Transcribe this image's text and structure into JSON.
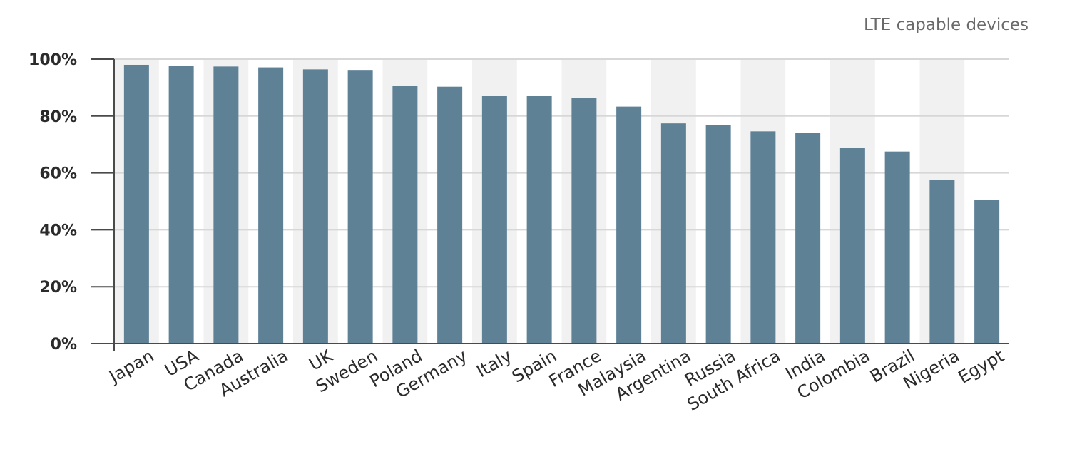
{
  "chart_data": {
    "type": "bar",
    "legend": "LTE capable devices",
    "categories": [
      "Japan",
      "USA",
      "Canada",
      "Australia",
      "UK",
      "Sweden",
      "Poland",
      "Germany",
      "Italy",
      "Spain",
      "France",
      "Malaysia",
      "Argentina",
      "Russia",
      "South Africa",
      "India",
      "Colombia",
      "Brazil",
      "Nigeria",
      "Egypt"
    ],
    "values": [
      98,
      97.7,
      97.4,
      97.1,
      96.4,
      96.2,
      90.6,
      90.3,
      87.1,
      87,
      86.4,
      83.3,
      77.4,
      76.7,
      74.6,
      74.1,
      68.7,
      67.5,
      57.4,
      50.6
    ],
    "ylim": [
      0,
      100
    ],
    "yticks": [
      0,
      20,
      40,
      60,
      80,
      100
    ],
    "ytick_labels": [
      "0%",
      "20%",
      "40%",
      "60%",
      "80%",
      "100%"
    ],
    "grid": true,
    "alternating_column_bands": true,
    "colors": {
      "bar": "#5e8196",
      "band": "#f1f1f1",
      "grid": "#d7d7d7",
      "axis": "#4a4a4a",
      "tick_text": "#2b2b2b",
      "legend_text": "#6a6a6a"
    }
  }
}
